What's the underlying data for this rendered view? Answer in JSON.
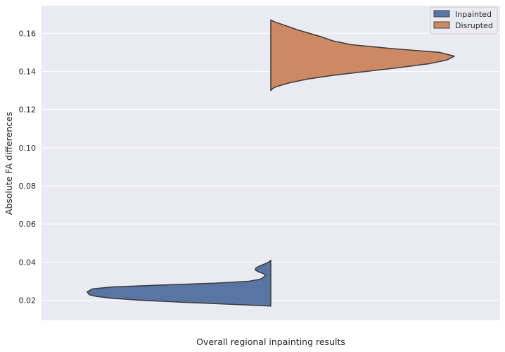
{
  "chart_data": {
    "type": "violin",
    "split": true,
    "title": "",
    "xlabel": "Overall regional inpainting results",
    "ylabel": "Absolute FA differences",
    "ylim": [
      0.0095,
      0.1745
    ],
    "yticks": [
      0.02,
      0.04,
      0.06,
      0.08,
      0.1,
      0.12,
      0.14,
      0.16
    ],
    "ytick_labels": [
      "0.02",
      "0.04",
      "0.06",
      "0.08",
      "0.10",
      "0.12",
      "0.14",
      "0.16"
    ],
    "grid": true,
    "legend_position": "top-right",
    "series": [
      {
        "name": "Inpainted",
        "side": "left",
        "color": "#5875a4",
        "range": [
          0.017,
          0.041
        ],
        "density": [
          [
            0.017,
            0.0
          ],
          [
            0.018,
            0.24
          ],
          [
            0.019,
            0.48
          ],
          [
            0.02,
            0.7
          ],
          [
            0.021,
            0.86
          ],
          [
            0.022,
            0.95
          ],
          [
            0.023,
            0.99
          ],
          [
            0.0245,
            1.0
          ],
          [
            0.026,
            0.97
          ],
          [
            0.027,
            0.86
          ],
          [
            0.028,
            0.6
          ],
          [
            0.029,
            0.3
          ],
          [
            0.03,
            0.12
          ],
          [
            0.031,
            0.06
          ],
          [
            0.032,
            0.04
          ],
          [
            0.033,
            0.03
          ],
          [
            0.034,
            0.04
          ],
          [
            0.035,
            0.07
          ],
          [
            0.036,
            0.085
          ],
          [
            0.037,
            0.08
          ],
          [
            0.038,
            0.06
          ],
          [
            0.039,
            0.035
          ],
          [
            0.04,
            0.012
          ],
          [
            0.041,
            0.0
          ]
        ]
      },
      {
        "name": "Disrupted",
        "side": "right",
        "color": "#cc8963",
        "range": [
          0.13,
          0.167
        ],
        "density": [
          [
            0.13,
            0.0
          ],
          [
            0.131,
            0.01
          ],
          [
            0.132,
            0.03
          ],
          [
            0.134,
            0.1
          ],
          [
            0.136,
            0.2
          ],
          [
            0.138,
            0.34
          ],
          [
            0.14,
            0.52
          ],
          [
            0.142,
            0.7
          ],
          [
            0.144,
            0.86
          ],
          [
            0.146,
            0.96
          ],
          [
            0.148,
            1.0
          ],
          [
            0.15,
            0.92
          ],
          [
            0.152,
            0.66
          ],
          [
            0.154,
            0.44
          ],
          [
            0.156,
            0.34
          ],
          [
            0.158,
            0.28
          ],
          [
            0.16,
            0.21
          ],
          [
            0.162,
            0.14
          ],
          [
            0.164,
            0.08
          ],
          [
            0.165,
            0.05
          ],
          [
            0.166,
            0.02
          ],
          [
            0.167,
            0.0
          ]
        ]
      }
    ]
  }
}
